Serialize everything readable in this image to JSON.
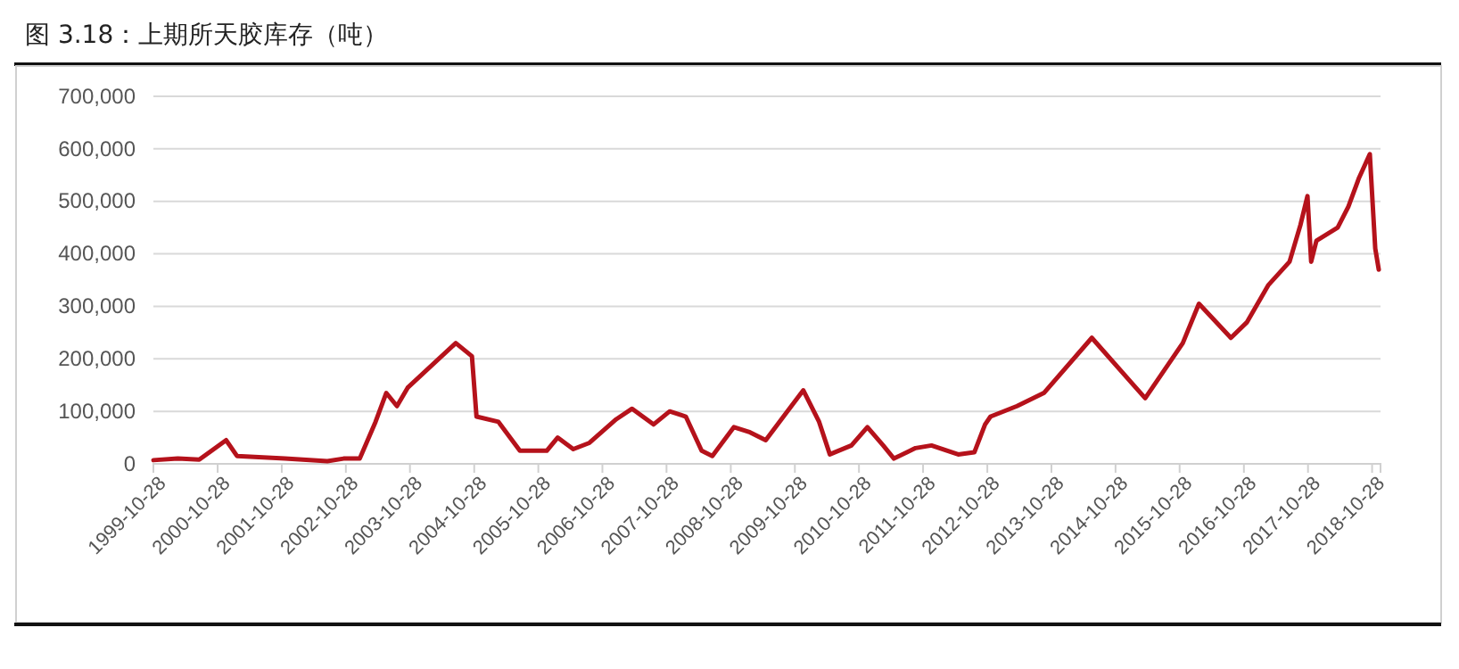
{
  "chart_data": {
    "type": "line",
    "title": "图 3.18：上期所天胶库存（吨）",
    "x": [
      "1999-10-28",
      "2000-03-15",
      "2000-07-15",
      "2000-12-15",
      "2001-02-15",
      "2001-11-15",
      "2002-07-15",
      "2002-10-15",
      "2003-01-15",
      "2003-04-15",
      "2003-06-15",
      "2003-08-15",
      "2003-10-15",
      "2004-07-15",
      "2004-10-15",
      "2004-11-10",
      "2005-03-15",
      "2005-07-15",
      "2005-12-15",
      "2006-02-15",
      "2006-05-15",
      "2006-08-15",
      "2007-01-15",
      "2007-04-15",
      "2007-08-15",
      "2007-11-15",
      "2008-02-15",
      "2008-05-15",
      "2008-07-15",
      "2008-11-15",
      "2009-02-15",
      "2009-05-15",
      "2009-09-15",
      "2009-12-15",
      "2010-03-15",
      "2010-05-15",
      "2010-09-15",
      "2010-12-15",
      "2011-03-15",
      "2011-05-15",
      "2011-09-15",
      "2011-12-15",
      "2012-05-15",
      "2012-08-15",
      "2012-10-15",
      "2012-11-15",
      "2013-04-15",
      "2013-09-15",
      "2014-06-15",
      "2015-04-15",
      "2015-11-15",
      "2016-02-15",
      "2016-08-15",
      "2016-11-15",
      "2017-03-15",
      "2017-07-15",
      "2017-09-15",
      "2017-10-25",
      "2017-11-15",
      "2017-12-15",
      "2018-04-15",
      "2018-06-15",
      "2018-08-15",
      "2018-10-15",
      "2018-11-15",
      "2018-12-05"
    ],
    "series": [
      {
        "color": "#b5121b",
        "values": [
          7000,
          10000,
          8000,
          45000,
          15000,
          10000,
          5000,
          10000,
          10000,
          80000,
          135000,
          110000,
          145000,
          230000,
          205000,
          90000,
          80000,
          25000,
          25000,
          50000,
          28000,
          40000,
          85000,
          105000,
          75000,
          100000,
          90000,
          25000,
          15000,
          70000,
          60000,
          45000,
          100000,
          140000,
          80000,
          18000,
          35000,
          70000,
          35000,
          10000,
          30000,
          35000,
          18000,
          22000,
          75000,
          90000,
          110000,
          135000,
          240000,
          125000,
          230000,
          305000,
          240000,
          270000,
          340000,
          385000,
          455000,
          510000,
          385000,
          425000,
          450000,
          490000,
          545000,
          590000,
          410000,
          370000
        ]
      }
    ],
    "xlim": [
      "1999-10-28",
      "2018-12-15"
    ],
    "xticks": [
      "1999-10-28",
      "2000-10-28",
      "2001-10-28",
      "2002-10-28",
      "2003-10-28",
      "2004-10-28",
      "2005-10-28",
      "2006-10-28",
      "2007-10-28",
      "2008-10-28",
      "2009-10-28",
      "2010-10-28",
      "2011-10-28",
      "2012-10-28",
      "2013-10-28",
      "2014-10-28",
      "2015-10-28",
      "2016-10-28",
      "2017-10-28",
      "2018-10-28"
    ],
    "ylim": [
      0,
      700000
    ],
    "yticks": [
      {
        "value": 0,
        "label": "0"
      },
      {
        "value": 100000,
        "label": "100,000"
      },
      {
        "value": 200000,
        "label": "200,000"
      },
      {
        "value": 300000,
        "label": "300,000"
      },
      {
        "value": 400000,
        "label": "400,000"
      },
      {
        "value": 500000,
        "label": "500,000"
      },
      {
        "value": 600000,
        "label": "600,000"
      },
      {
        "value": 700000,
        "label": "700,000"
      }
    ],
    "grid": "y",
    "marker": "none",
    "line_style": "solid"
  }
}
